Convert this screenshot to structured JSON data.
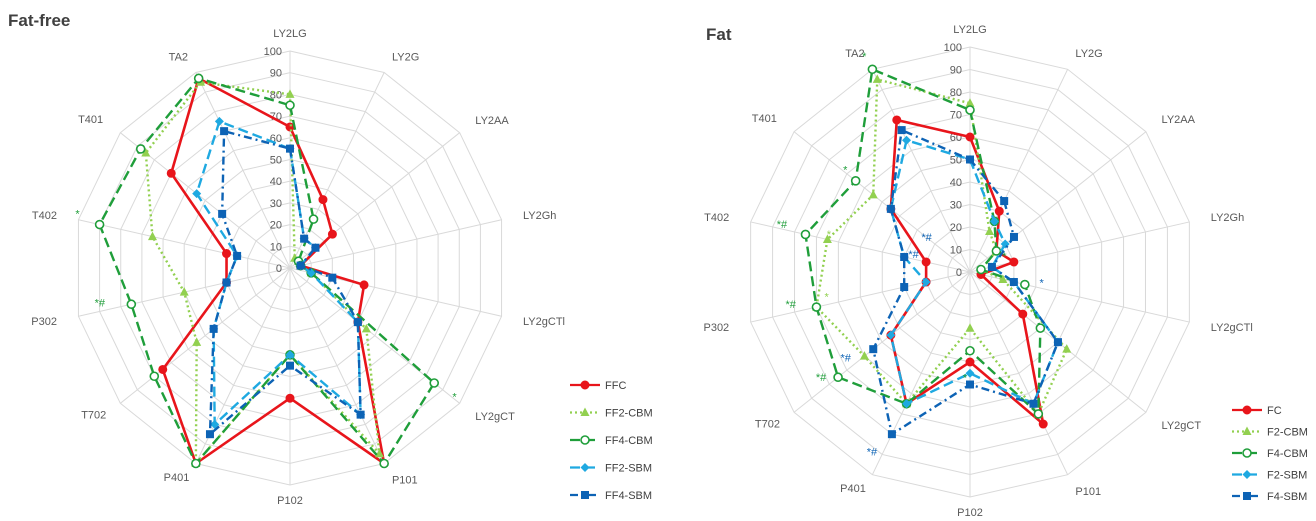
{
  "colors": {
    "FC": "#e8151b",
    "CBM2": "#92d050",
    "CBM4": "#1f9e3a",
    "SBM2": "#1fa9e1",
    "SBM4": "#0d63b5",
    "grid": "#d9d9d9",
    "text": "#595959"
  },
  "chart_data": [
    {
      "type": "radar",
      "title": "Fat-free",
      "axes": [
        "LY2LG",
        "LY2G",
        "LY2AA",
        "LY2Gh",
        "LY2gCTl",
        "LY2gCT",
        "P101",
        "P102",
        "P401",
        "T702",
        "P302",
        "T402",
        "T401",
        "TA2"
      ],
      "r_ticks": [
        "0",
        "10",
        "20",
        "30",
        "40",
        "50",
        "60",
        "70",
        "80",
        "90",
        "100"
      ],
      "rlim": [
        0,
        100
      ],
      "grid": true,
      "legend_position": "right",
      "series": [
        {
          "name": "FFC",
          "key": "FC",
          "dash": "solid",
          "marker": "circle",
          "values": [
            65,
            35,
            25,
            5,
            35,
            40,
            100,
            60,
            100,
            75,
            30,
            30,
            70,
            97
          ]
        },
        {
          "name": "FF2-CBM",
          "key": "CBM2",
          "dash": "dot",
          "marker": "triangle",
          "values": [
            80,
            5,
            5,
            5,
            10,
            45,
            95,
            40,
            100,
            55,
            50,
            65,
            85,
            95
          ]
        },
        {
          "name": "FF4-CBM",
          "key": "CBM4",
          "dash": "dash",
          "marker": "circle-open",
          "values": [
            75,
            25,
            5,
            5,
            10,
            85,
            100,
            40,
            100,
            80,
            75,
            90,
            88,
            97
          ]
        },
        {
          "name": "FF2-SBM",
          "key": "SBM2",
          "dash": "dash",
          "marker": "diamond",
          "values": [
            55,
            15,
            15,
            5,
            10,
            40,
            75,
            40,
            80,
            45,
            30,
            25,
            55,
            75
          ]
        },
        {
          "name": "FF4-SBM",
          "key": "SBM4",
          "dash": "dashdot",
          "marker": "square",
          "values": [
            55,
            15,
            15,
            5,
            20,
            40,
            75,
            45,
            85,
            45,
            30,
            25,
            40,
            70
          ]
        }
      ],
      "annotations": [
        {
          "text": "*",
          "axis": "LY2gCT",
          "r": 100,
          "key": "CBM4"
        },
        {
          "text": "*",
          "axis": "T402",
          "r": 98,
          "key": "CBM4"
        },
        {
          "text": "*#",
          "axis": "P302",
          "r": 86,
          "key": "CBM4"
        }
      ]
    },
    {
      "type": "radar",
      "title": "Fat",
      "axes": [
        "LY2LG",
        "LY2G",
        "LY2AA",
        "LY2Gh",
        "LY2gCTl",
        "LY2gCT",
        "P101",
        "P102",
        "P401",
        "T702",
        "P302",
        "T402",
        "T401",
        "TA2"
      ],
      "r_ticks": [
        "0",
        "10",
        "20",
        "30",
        "40",
        "50",
        "60",
        "70",
        "80",
        "90",
        "100"
      ],
      "rlim": [
        0,
        100
      ],
      "grid": true,
      "legend_position": "right",
      "series": [
        {
          "name": "FC",
          "key": "FC",
          "dash": "solid",
          "marker": "circle",
          "values": [
            60,
            30,
            15,
            20,
            5,
            30,
            75,
            40,
            65,
            45,
            20,
            20,
            45,
            75
          ]
        },
        {
          "name": "F2-CBM",
          "key": "CBM2",
          "dash": "dot",
          "marker": "triangle",
          "values": [
            75,
            20,
            15,
            5,
            15,
            55,
            70,
            25,
            65,
            60,
            70,
            65,
            55,
            95
          ]
        },
        {
          "name": "F4-CBM",
          "key": "CBM4",
          "dash": "dash",
          "marker": "circle-open",
          "values": [
            72,
            25,
            15,
            5,
            25,
            40,
            70,
            35,
            65,
            75,
            70,
            75,
            65,
            100
          ]
        },
        {
          "name": "F2-SBM",
          "key": "SBM2",
          "dash": "dash",
          "marker": "diamond",
          "values": [
            50,
            25,
            20,
            10,
            20,
            50,
            65,
            45,
            65,
            45,
            20,
            30,
            45,
            65
          ]
        },
        {
          "name": "F4-SBM",
          "key": "SBM4",
          "dash": "dashdot",
          "marker": "square",
          "values": [
            50,
            35,
            25,
            10,
            20,
            50,
            65,
            50,
            80,
            55,
            30,
            30,
            45,
            70
          ]
        }
      ],
      "annotations": [
        {
          "text": "*",
          "axis": "TA2",
          "r": 103,
          "key": "CBM4"
        },
        {
          "text": "*",
          "axis": "T401",
          "r": 68,
          "key": "CBM4"
        },
        {
          "text": "*#",
          "axis": "T402",
          "r": 82,
          "key": "CBM4"
        },
        {
          "text": "*",
          "axis": "T402",
          "r": 62,
          "key": "CBM2"
        },
        {
          "text": "*#",
          "axis": "P302",
          "r": 78,
          "key": "CBM4"
        },
        {
          "text": "*",
          "axis": "P302",
          "r": 63,
          "key": "CBM2"
        },
        {
          "text": "*#",
          "axis": "T702",
          "r": 80,
          "key": "CBM4"
        },
        {
          "text": "*#",
          "axis": "T702",
          "r": 66,
          "key": "SBM4"
        },
        {
          "text": "*#",
          "axis": "P401",
          "r": 92,
          "key": "SBM4"
        },
        {
          "text": "*",
          "axis": "P102",
          "r": 50,
          "key": "CBM4"
        },
        {
          "text": "*",
          "axis": "LY2gCTl",
          "r": 35,
          "key": "SBM4"
        },
        {
          "text": "*",
          "axis": "LY2Gh",
          "r": 18,
          "key": "CBM4"
        },
        {
          "text": "*#",
          "axis": "T401",
          "r": 20,
          "key": "SBM4"
        },
        {
          "text": "*#",
          "axis": "T402",
          "r": 22,
          "key": "SBM4"
        }
      ]
    }
  ]
}
